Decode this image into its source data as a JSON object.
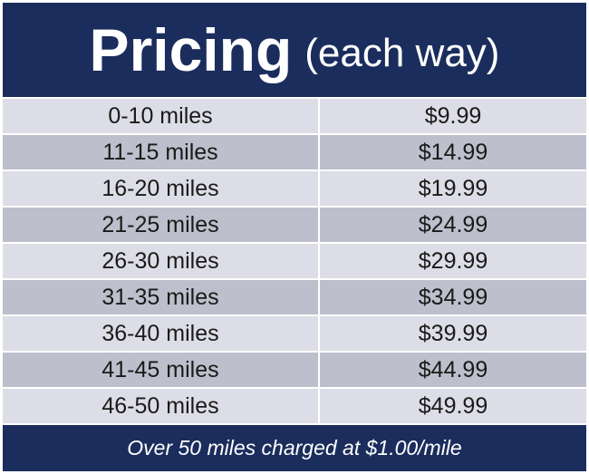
{
  "header": {
    "title": "Pricing",
    "subtitle": "(each way)"
  },
  "rows": [
    {
      "distance": "0-10 miles",
      "price": "$9.99"
    },
    {
      "distance": "11-15 miles",
      "price": "$14.99"
    },
    {
      "distance": "16-20 miles",
      "price": "$19.99"
    },
    {
      "distance": "21-25 miles",
      "price": "$24.99"
    },
    {
      "distance": "26-30 miles",
      "price": "$29.99"
    },
    {
      "distance": "31-35 miles",
      "price": "$34.99"
    },
    {
      "distance": "36-40 miles",
      "price": "$39.99"
    },
    {
      "distance": "41-45 miles",
      "price": "$44.99"
    },
    {
      "distance": "46-50 miles",
      "price": "$49.99"
    }
  ],
  "footer": {
    "note": "Over 50 miles charged at $1.00/mile"
  },
  "colors": {
    "navy": "#1b2d5c",
    "row_light": "#dcdde6",
    "row_dark": "#bebfcc"
  }
}
